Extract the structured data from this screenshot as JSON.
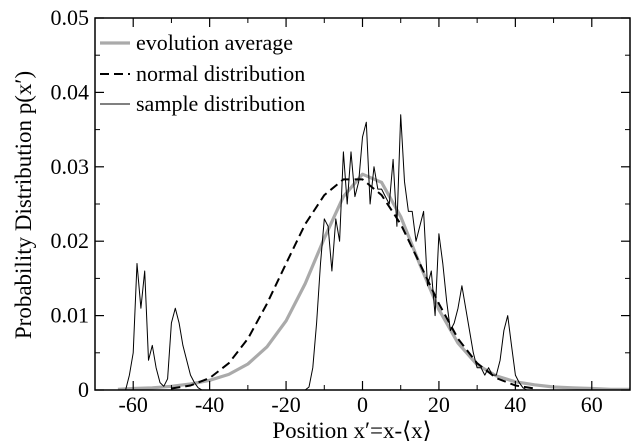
{
  "chart_data": {
    "type": "line",
    "title": "",
    "xlabel": "Position x′=x-⟨x⟩",
    "ylabel": "Probability Distribution p(x′)",
    "xlim": [
      -70,
      70
    ],
    "ylim": [
      0,
      0.05
    ],
    "x_ticks": [
      -60,
      -40,
      -20,
      0,
      20,
      40,
      60
    ],
    "x_tick_labels": [
      "-60",
      "-40",
      "-20",
      "0",
      "20",
      "40",
      "60"
    ],
    "y_ticks": [
      0,
      0.01,
      0.02,
      0.03,
      0.04,
      0.05
    ],
    "y_tick_labels": [
      "0",
      "0.01",
      "0.02",
      "0.03",
      "0.04",
      "0.05"
    ],
    "grid": false,
    "legend_position": "top-left",
    "series": [
      {
        "name": "evolution average",
        "style": "solid-thick",
        "color": "#aaaaaa",
        "x": [
          -64,
          -60,
          -55,
          -50,
          -45,
          -40,
          -35,
          -30,
          -25,
          -20,
          -15,
          -10,
          -5,
          0,
          5,
          10,
          15,
          20,
          25,
          30,
          35,
          40,
          45,
          50,
          55,
          60,
          65,
          70
        ],
        "y": [
          0.0001,
          0.0002,
          0.0003,
          0.0005,
          0.0008,
          0.0013,
          0.0021,
          0.0035,
          0.0058,
          0.0093,
          0.0143,
          0.0204,
          0.026,
          0.029,
          0.0279,
          0.0233,
          0.0169,
          0.0108,
          0.0063,
          0.0034,
          0.0019,
          0.0011,
          0.0007,
          0.0004,
          0.0003,
          0.0002,
          0.0001,
          0.0001
        ]
      },
      {
        "name": "normal distribution",
        "style": "dashed",
        "color": "#000000",
        "x": [
          -50,
          -45,
          -40,
          -35,
          -30,
          -25,
          -20,
          -15,
          -10,
          -5,
          0,
          5,
          10,
          15,
          20,
          25,
          30,
          35,
          40,
          45
        ],
        "y": [
          0.0002,
          0.0006,
          0.0016,
          0.0036,
          0.0069,
          0.0116,
          0.017,
          0.0223,
          0.0262,
          0.0283,
          0.0283,
          0.0262,
          0.0223,
          0.017,
          0.0116,
          0.0069,
          0.0036,
          0.0016,
          0.0006,
          0.0002
        ]
      },
      {
        "name": "sample distribution",
        "style": "solid-thin",
        "color": "#000000",
        "x": [
          -62,
          -61,
          -60,
          -59,
          -58,
          -57,
          -56,
          -55,
          -54,
          -53,
          -52,
          -51,
          -50,
          -49,
          -48,
          -47,
          -46,
          -45,
          -44,
          -43,
          -42,
          -15,
          -14,
          -13,
          -12,
          -11,
          -10,
          -9,
          -8,
          -7,
          -6,
          -5,
          -4,
          -3,
          -2,
          -1,
          0,
          1,
          2,
          3,
          4,
          5,
          6,
          7,
          8,
          9,
          10,
          11,
          12,
          13,
          14,
          15,
          16,
          17,
          18,
          19,
          20,
          21,
          22,
          23,
          24,
          25,
          26,
          27,
          28,
          29,
          30,
          31,
          32,
          33,
          34,
          35,
          36,
          37,
          38,
          39,
          40,
          41,
          42,
          43
        ],
        "y": [
          0,
          0.002,
          0.005,
          0.017,
          0.011,
          0.016,
          0.004,
          0.006,
          0.003,
          0.001,
          0.0005,
          0.0015,
          0.009,
          0.011,
          0.009,
          0.006,
          0.004,
          0.002,
          0.001,
          0.0003,
          0,
          0,
          0.0004,
          0.003,
          0.009,
          0.017,
          0.023,
          0.022,
          0.016,
          0.023,
          0.02,
          0.032,
          0.025,
          0.032,
          0.026,
          0.028,
          0.034,
          0.036,
          0.025,
          0.03,
          0.027,
          0.027,
          0.026,
          0.025,
          0.031,
          0.022,
          0.037,
          0.028,
          0.024,
          0.024,
          0.02,
          0.022,
          0.024,
          0.014,
          0.016,
          0.01,
          0.021,
          0.017,
          0.012,
          0.008,
          0.009,
          0.011,
          0.014,
          0.011,
          0.008,
          0.005,
          0.003,
          0.003,
          0.002,
          0.003,
          0.002,
          0.002,
          0.004,
          0.008,
          0.01,
          0.006,
          0.002,
          0.001,
          0.0003,
          0
        ]
      }
    ]
  }
}
